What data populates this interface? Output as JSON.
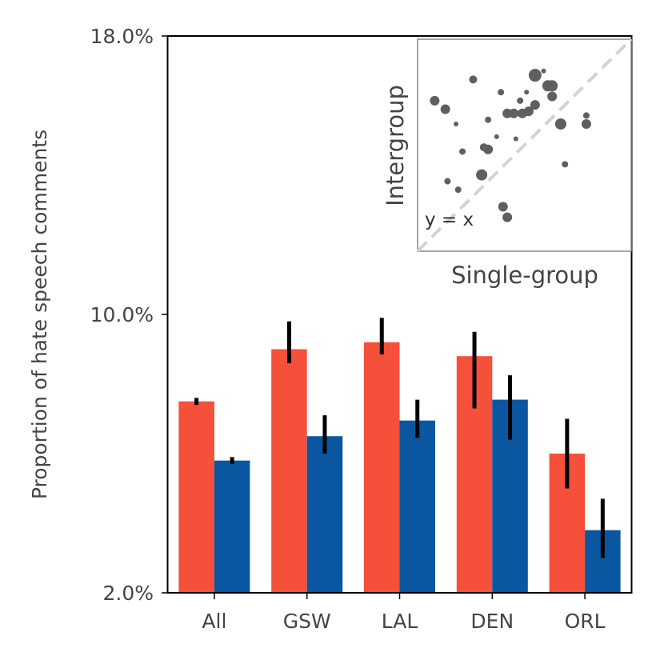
{
  "chart_data": [
    {
      "type": "bar",
      "ylabel": "Proportion of hate speech comments",
      "ylim": [
        2.0,
        18.0
      ],
      "yticks": [
        "2.0%",
        "10.0%",
        "18.0%"
      ],
      "categories": [
        "All",
        "GSW",
        "LAL",
        "DEN",
        "ORL"
      ],
      "colors": [
        "#f4503a",
        "#0b56a0"
      ],
      "series": [
        {
          "values": [
            7.5,
            9.0,
            9.2,
            8.8,
            6.0
          ],
          "err_low": [
            7.4,
            8.6,
            8.85,
            7.3,
            5.0
          ],
          "err_high": [
            7.6,
            9.8,
            9.9,
            9.5,
            7.0
          ]
        },
        {
          "values": [
            5.8,
            6.5,
            6.95,
            7.55,
            3.8
          ],
          "err_low": [
            5.7,
            6.0,
            6.45,
            6.4,
            3.0
          ],
          "err_high": [
            5.9,
            7.1,
            7.55,
            8.25,
            4.7
          ]
        }
      ],
      "error_color": "#000000"
    },
    {
      "type": "scatter",
      "xlabel": "Single-group",
      "ylabel": "Intergroup",
      "annotation": "y = x",
      "reference_line": "y = x",
      "xlim": [
        0,
        1
      ],
      "ylim": [
        0,
        1
      ],
      "point_color": "#5f5f5f",
      "points": [
        {
          "x": 0.08,
          "y": 0.71,
          "s": 6
        },
        {
          "x": 0.13,
          "y": 0.67,
          "s": 6
        },
        {
          "x": 0.18,
          "y": 0.6,
          "s": 3
        },
        {
          "x": 0.21,
          "y": 0.47,
          "s": 4
        },
        {
          "x": 0.26,
          "y": 0.81,
          "s": 5
        },
        {
          "x": 0.14,
          "y": 0.33,
          "s": 4
        },
        {
          "x": 0.19,
          "y": 0.29,
          "s": 4
        },
        {
          "x": 0.3,
          "y": 0.36,
          "s": 7
        },
        {
          "x": 0.31,
          "y": 0.49,
          "s": 5
        },
        {
          "x": 0.33,
          "y": 0.48,
          "s": 6
        },
        {
          "x": 0.33,
          "y": 0.62,
          "s": 4
        },
        {
          "x": 0.37,
          "y": 0.54,
          "s": 3
        },
        {
          "x": 0.39,
          "y": 0.75,
          "s": 4
        },
        {
          "x": 0.4,
          "y": 0.21,
          "s": 6
        },
        {
          "x": 0.42,
          "y": 0.16,
          "s": 6
        },
        {
          "x": 0.42,
          "y": 0.65,
          "s": 6
        },
        {
          "x": 0.45,
          "y": 0.65,
          "s": 6
        },
        {
          "x": 0.46,
          "y": 0.53,
          "s": 3
        },
        {
          "x": 0.48,
          "y": 0.71,
          "s": 4
        },
        {
          "x": 0.49,
          "y": 0.65,
          "s": 6
        },
        {
          "x": 0.51,
          "y": 0.75,
          "s": 3
        },
        {
          "x": 0.52,
          "y": 0.66,
          "s": 6
        },
        {
          "x": 0.55,
          "y": 0.69,
          "s": 6
        },
        {
          "x": 0.55,
          "y": 0.83,
          "s": 8
        },
        {
          "x": 0.59,
          "y": 0.85,
          "s": 3
        },
        {
          "x": 0.61,
          "y": 0.78,
          "s": 7
        },
        {
          "x": 0.63,
          "y": 0.78,
          "s": 7
        },
        {
          "x": 0.63,
          "y": 0.73,
          "s": 6
        },
        {
          "x": 0.67,
          "y": 0.6,
          "s": 7
        },
        {
          "x": 0.69,
          "y": 0.41,
          "s": 4
        },
        {
          "x": 0.79,
          "y": 0.64,
          "s": 4
        },
        {
          "x": 0.79,
          "y": 0.6,
          "s": 6
        }
      ]
    }
  ]
}
